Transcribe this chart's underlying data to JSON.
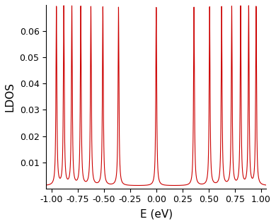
{
  "title": "",
  "xlabel": "E (eV)",
  "ylabel": "LDOS",
  "xlim": [
    -1.05,
    1.05
  ],
  "ylim": [
    0,
    0.07
  ],
  "line_color": "#cc0000",
  "line_width": 0.8,
  "background_color": "#ffffff",
  "figsize": [
    3.9,
    3.17
  ],
  "dpi": 100,
  "landau_scale": 0.36,
  "num_levels": 7,
  "gamma": 0.005,
  "base_ldos": 0.001,
  "peak_amplitude": 0.068,
  "yticks": [
    0.01,
    0.02,
    0.03,
    0.04,
    0.05,
    0.06
  ],
  "xticks": [
    -1.0,
    -0.75,
    -0.5,
    -0.25,
    0.0,
    0.25,
    0.5,
    0.75,
    1.0
  ]
}
